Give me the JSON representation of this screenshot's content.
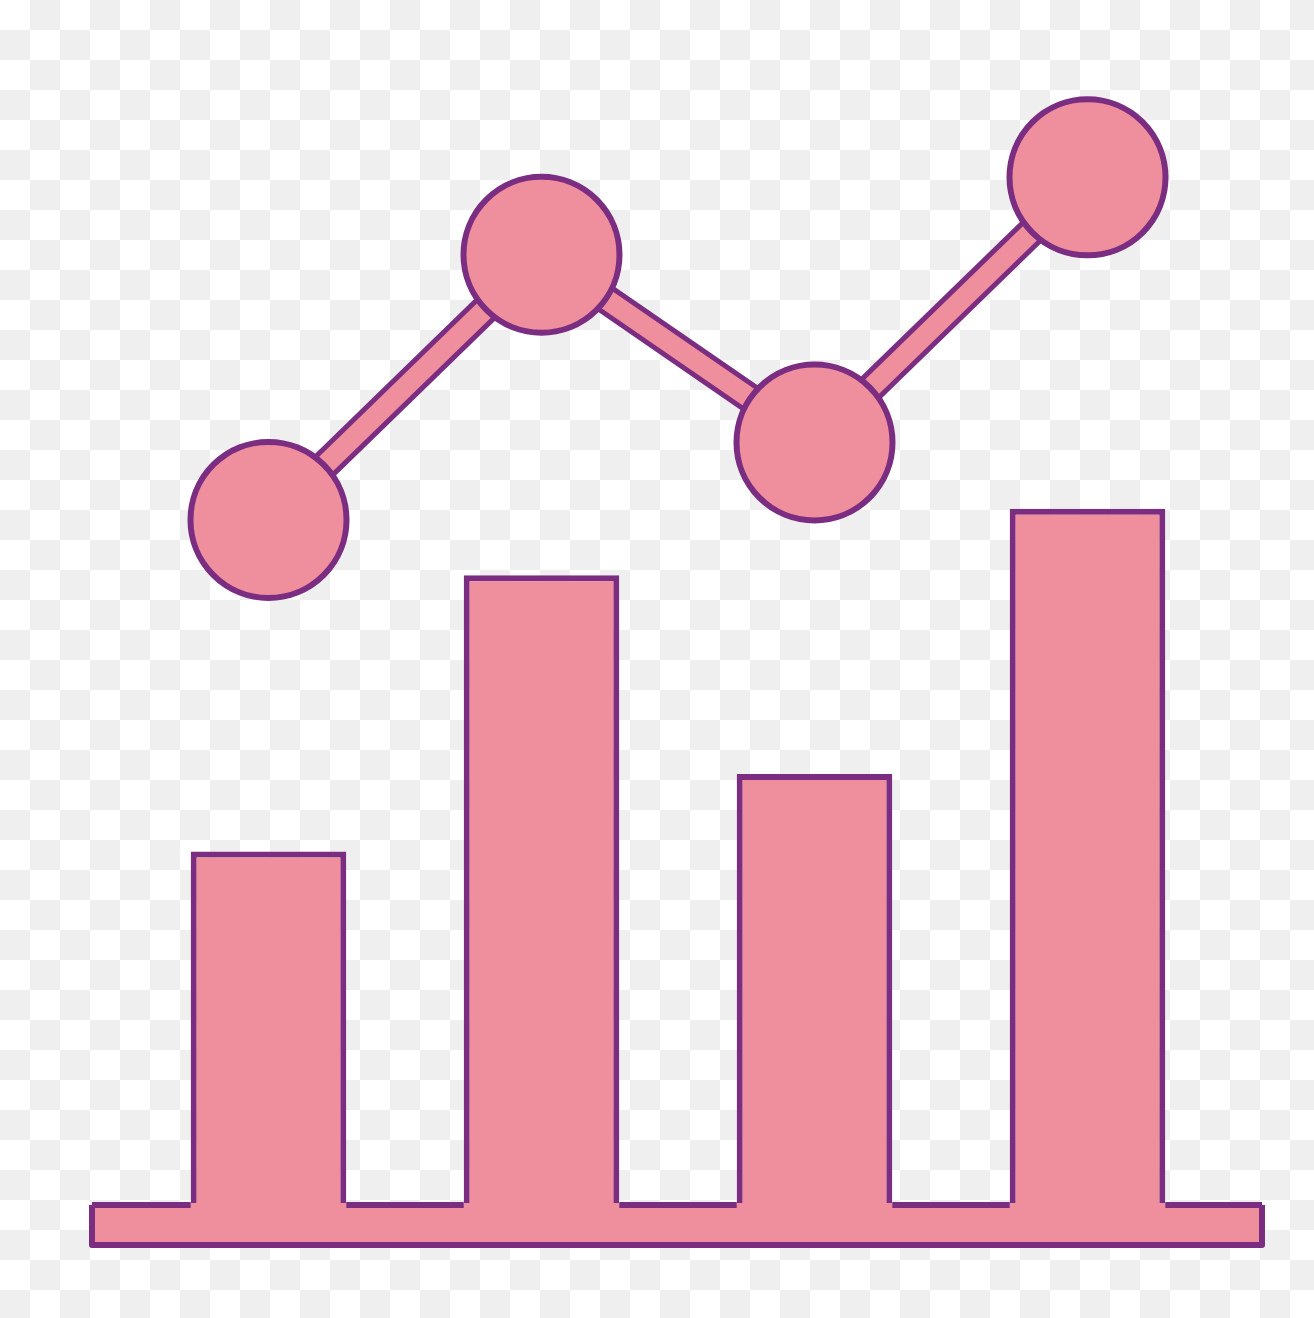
{
  "chart_data": {
    "type": "bar",
    "categories": [
      null,
      null,
      null,
      null
    ],
    "series": [
      {
        "type": "bar",
        "color": "#ef8f9d",
        "values": [
          32,
          57,
          39,
          63
        ]
      },
      {
        "type": "line",
        "color": "#ef8f9d",
        "marker": "circle",
        "values": [
          62,
          86,
          69,
          93
        ]
      }
    ],
    "ylim": [
      0,
      100
    ],
    "grid": false,
    "tick_labels": false
  }
}
